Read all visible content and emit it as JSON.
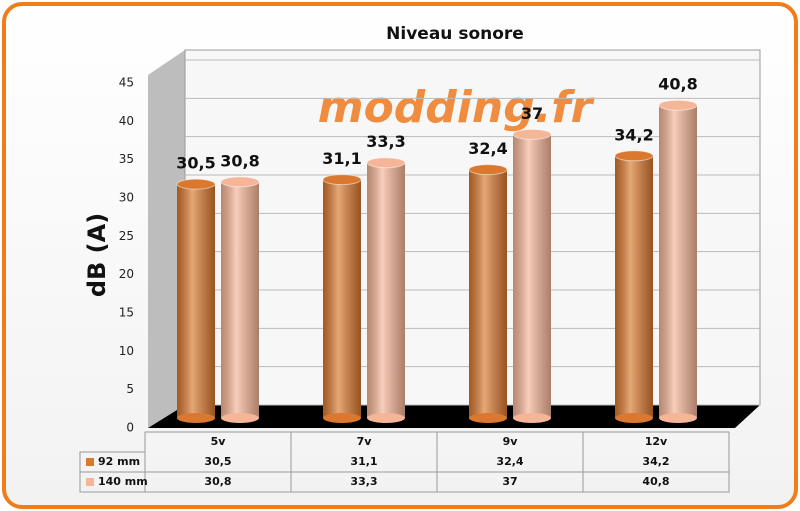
{
  "chart_data": {
    "type": "bar",
    "title": "Niveau sonore",
    "watermark": "modding.fr",
    "y_label": "dB (A)",
    "categories": [
      "5v",
      "7v",
      "9v",
      "12v"
    ],
    "series": [
      {
        "name": "92 mm",
        "color": "#d9782e",
        "values": [
          30.5,
          31.1,
          32.4,
          34.2
        ],
        "value_labels": [
          "30,5",
          "31,1",
          "32,4",
          "34,2"
        ]
      },
      {
        "name": "140 mm",
        "color": "#f5b597",
        "values": [
          30.8,
          33.3,
          37,
          40.8
        ],
        "value_labels": [
          "30,8",
          "33,3",
          "37",
          "40,8"
        ]
      }
    ],
    "ylim": [
      0,
      45
    ],
    "yticks": [
      0,
      5,
      10,
      15,
      20,
      25,
      30,
      35,
      40,
      45
    ],
    "grid": true
  }
}
